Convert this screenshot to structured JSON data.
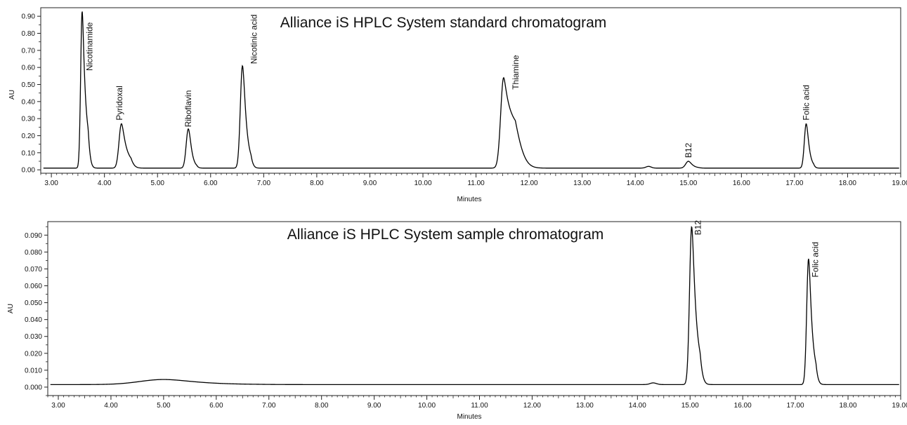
{
  "chart_data": [
    {
      "type": "line",
      "title": "Alliance iS HPLC System standard chromatogram",
      "xlabel": "Minutes",
      "ylabel": "AU",
      "xlim": [
        2.8,
        19.0
      ],
      "ylim": [
        -0.02,
        0.95
      ],
      "x_ticks": [
        "3.00",
        "4.00",
        "5.00",
        "6.00",
        "7.00",
        "8.00",
        "9.00",
        "10.00",
        "11.00",
        "12.00",
        "13.00",
        "14.00",
        "15.00",
        "16.00",
        "17.00",
        "18.00",
        "19.00"
      ],
      "y_ticks": [
        "0.00",
        "0.10",
        "0.20",
        "0.30",
        "0.40",
        "0.50",
        "0.60",
        "0.70",
        "0.80",
        "0.90"
      ],
      "baseline": 0.01,
      "peaks": [
        {
          "label": "Nicotinamide",
          "x": 3.58,
          "y": 0.93
        },
        {
          "label": "Pyridoxal",
          "x": 4.32,
          "y": 0.27
        },
        {
          "label": "Riboflavin",
          "x": 5.58,
          "y": 0.24
        },
        {
          "label": "Nicotinic acid",
          "x": 6.6,
          "y": 0.61
        },
        {
          "label": "Thiamine",
          "x": 11.52,
          "y": 0.54
        },
        {
          "label": "",
          "x": 14.25,
          "y": 0.02
        },
        {
          "label": "B12",
          "x": 15.0,
          "y": 0.05
        },
        {
          "label": "Folic acid",
          "x": 17.22,
          "y": 0.27
        }
      ]
    },
    {
      "type": "line",
      "title": "Alliance iS HPLC System sample chromatogram",
      "xlabel": "Minutes",
      "ylabel": "AU",
      "xlim": [
        2.8,
        19.0
      ],
      "ylim": [
        -0.005,
        0.098
      ],
      "x_ticks": [
        "3.00",
        "4.00",
        "5.00",
        "6.00",
        "7.00",
        "8.00",
        "9.00",
        "10.00",
        "11.00",
        "12.00",
        "13.00",
        "14.00",
        "15.00",
        "16.00",
        "17.00",
        "18.00",
        "19.00"
      ],
      "y_ticks": [
        "0.000",
        "0.010",
        "0.020",
        "0.030",
        "0.040",
        "0.050",
        "0.060",
        "0.070",
        "0.080",
        "0.090"
      ],
      "baseline": 0.0015,
      "peaks": [
        {
          "label": "",
          "x": 5.0,
          "y": 0.0045
        },
        {
          "label": "",
          "x": 14.3,
          "y": 0.0025
        },
        {
          "label": "B12",
          "x": 15.03,
          "y": 0.095
        },
        {
          "label": "Folic acid",
          "x": 17.25,
          "y": 0.076
        }
      ]
    }
  ]
}
